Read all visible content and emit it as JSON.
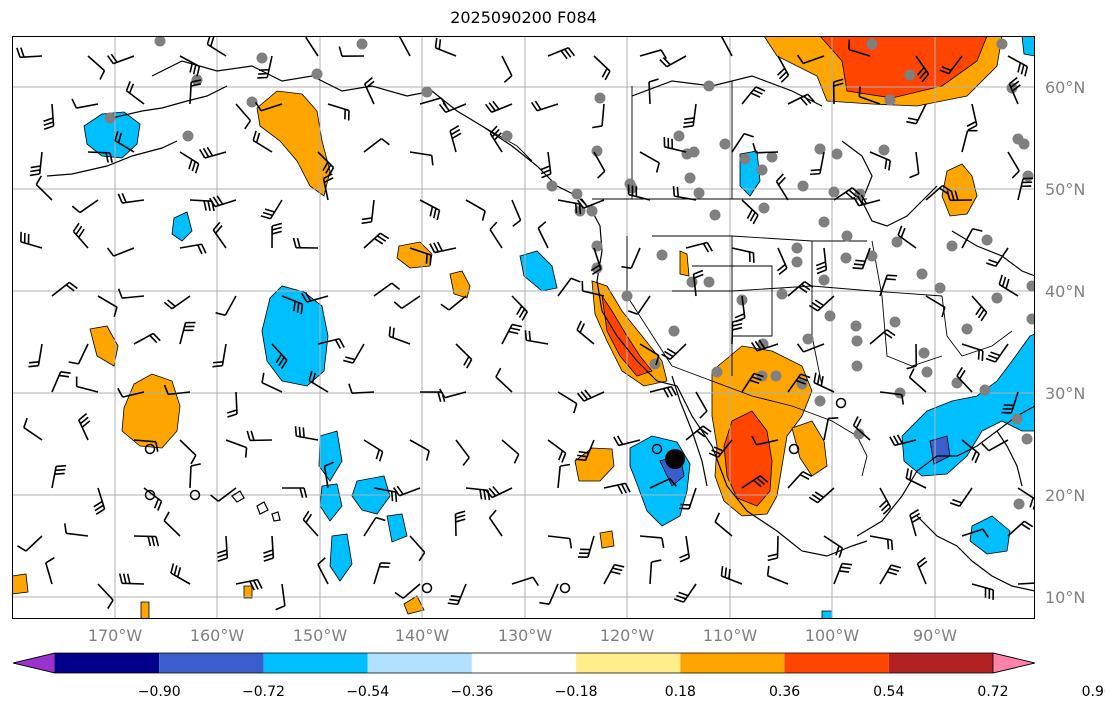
{
  "title": "2025090200 F084",
  "lat_labels": [
    "60°N",
    "50°N",
    "40°N",
    "30°N",
    "20°N",
    "10°N"
  ],
  "lon_labels": [
    "170°W",
    "160°W",
    "150°W",
    "140°W",
    "130°W",
    "120°W",
    "110°W",
    "100°W",
    "90°W"
  ],
  "colorbar": {
    "colors": [
      "#9a32cd",
      "#00008b",
      "#3a5fcd",
      "#00bfff",
      "#b0e2ff",
      "#ffffff",
      "#ffec8b",
      "#ffa500",
      "#ff4500",
      "#b22222",
      "#ff82ab"
    ],
    "labels": [
      "−0.90",
      "−0.72",
      "−0.54",
      "−0.36",
      "−0.18",
      "0.18",
      "0.36",
      "0.54",
      "0.72",
      "0.90"
    ]
  }
}
